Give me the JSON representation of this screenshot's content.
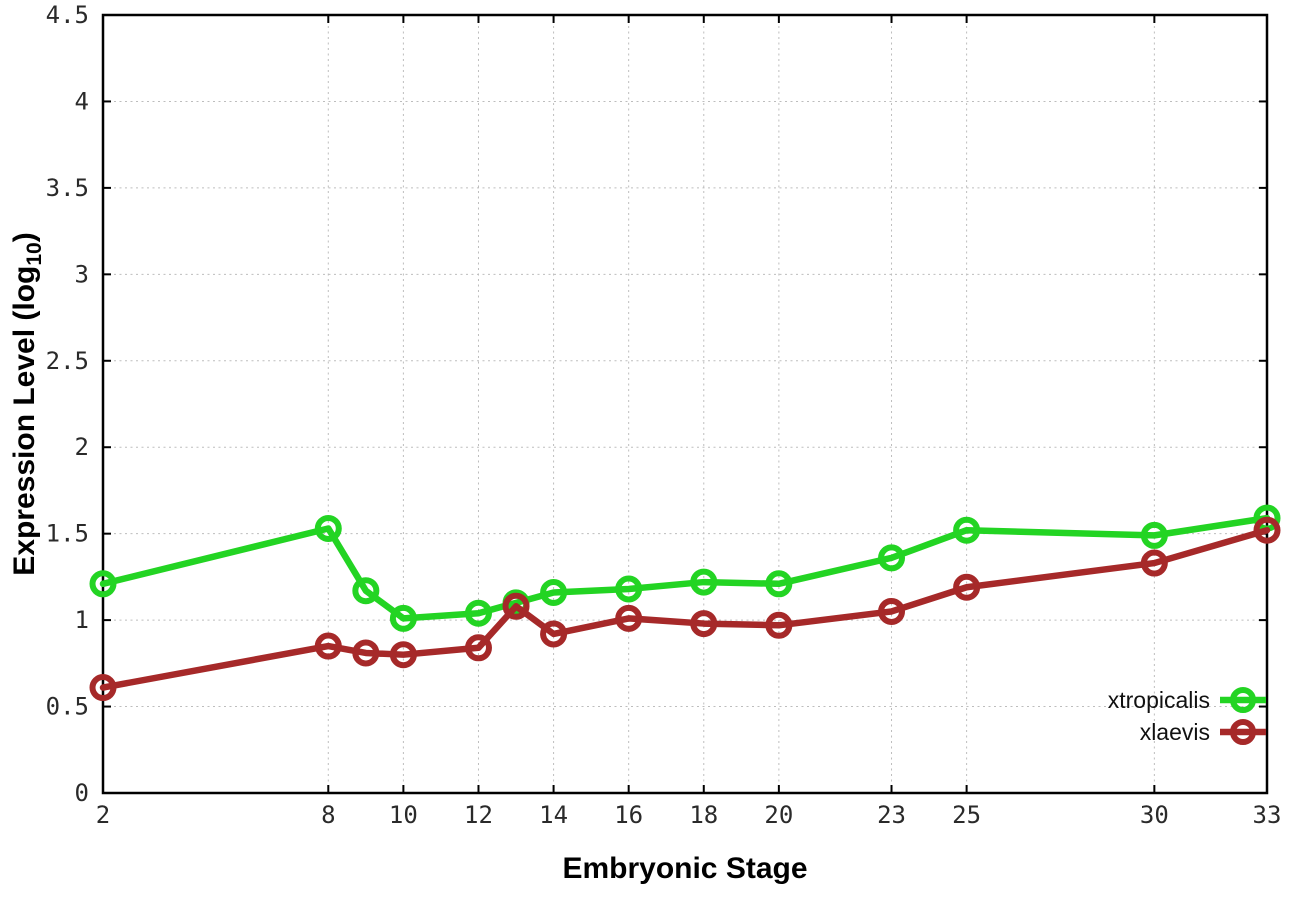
{
  "chart_data": {
    "type": "line",
    "title": "",
    "xlabel": "Embryonic Stage",
    "ylabel": "Expression Level (log10)",
    "ylabel_parts": {
      "prefix": "Expression Level (log",
      "subscript": "10",
      "suffix": ")"
    },
    "xlim": [
      2,
      33
    ],
    "ylim": [
      0,
      4.5
    ],
    "grid": true,
    "legend_position": "inside-bottom-right",
    "x_ticks": [
      2,
      8,
      10,
      12,
      14,
      16,
      18,
      20,
      23,
      25,
      30,
      33
    ],
    "y_ticks": [
      0,
      0.5,
      1,
      1.5,
      2,
      2.5,
      3,
      3.5,
      4,
      4.5
    ],
    "x": [
      2,
      8,
      9,
      10,
      12,
      13,
      14,
      16,
      18,
      20,
      23,
      25,
      30,
      33
    ],
    "series": [
      {
        "name": "xtropicalis",
        "color": "#23d423",
        "values": [
          1.21,
          1.53,
          1.17,
          1.01,
          1.04,
          1.1,
          1.16,
          1.18,
          1.22,
          1.21,
          1.36,
          1.52,
          1.49,
          1.59
        ]
      },
      {
        "name": "xlaevis",
        "color": "#a62929",
        "values": [
          0.61,
          0.85,
          0.81,
          0.8,
          0.84,
          1.08,
          0.92,
          1.01,
          0.98,
          0.97,
          1.05,
          1.19,
          1.33,
          1.52
        ]
      }
    ]
  }
}
